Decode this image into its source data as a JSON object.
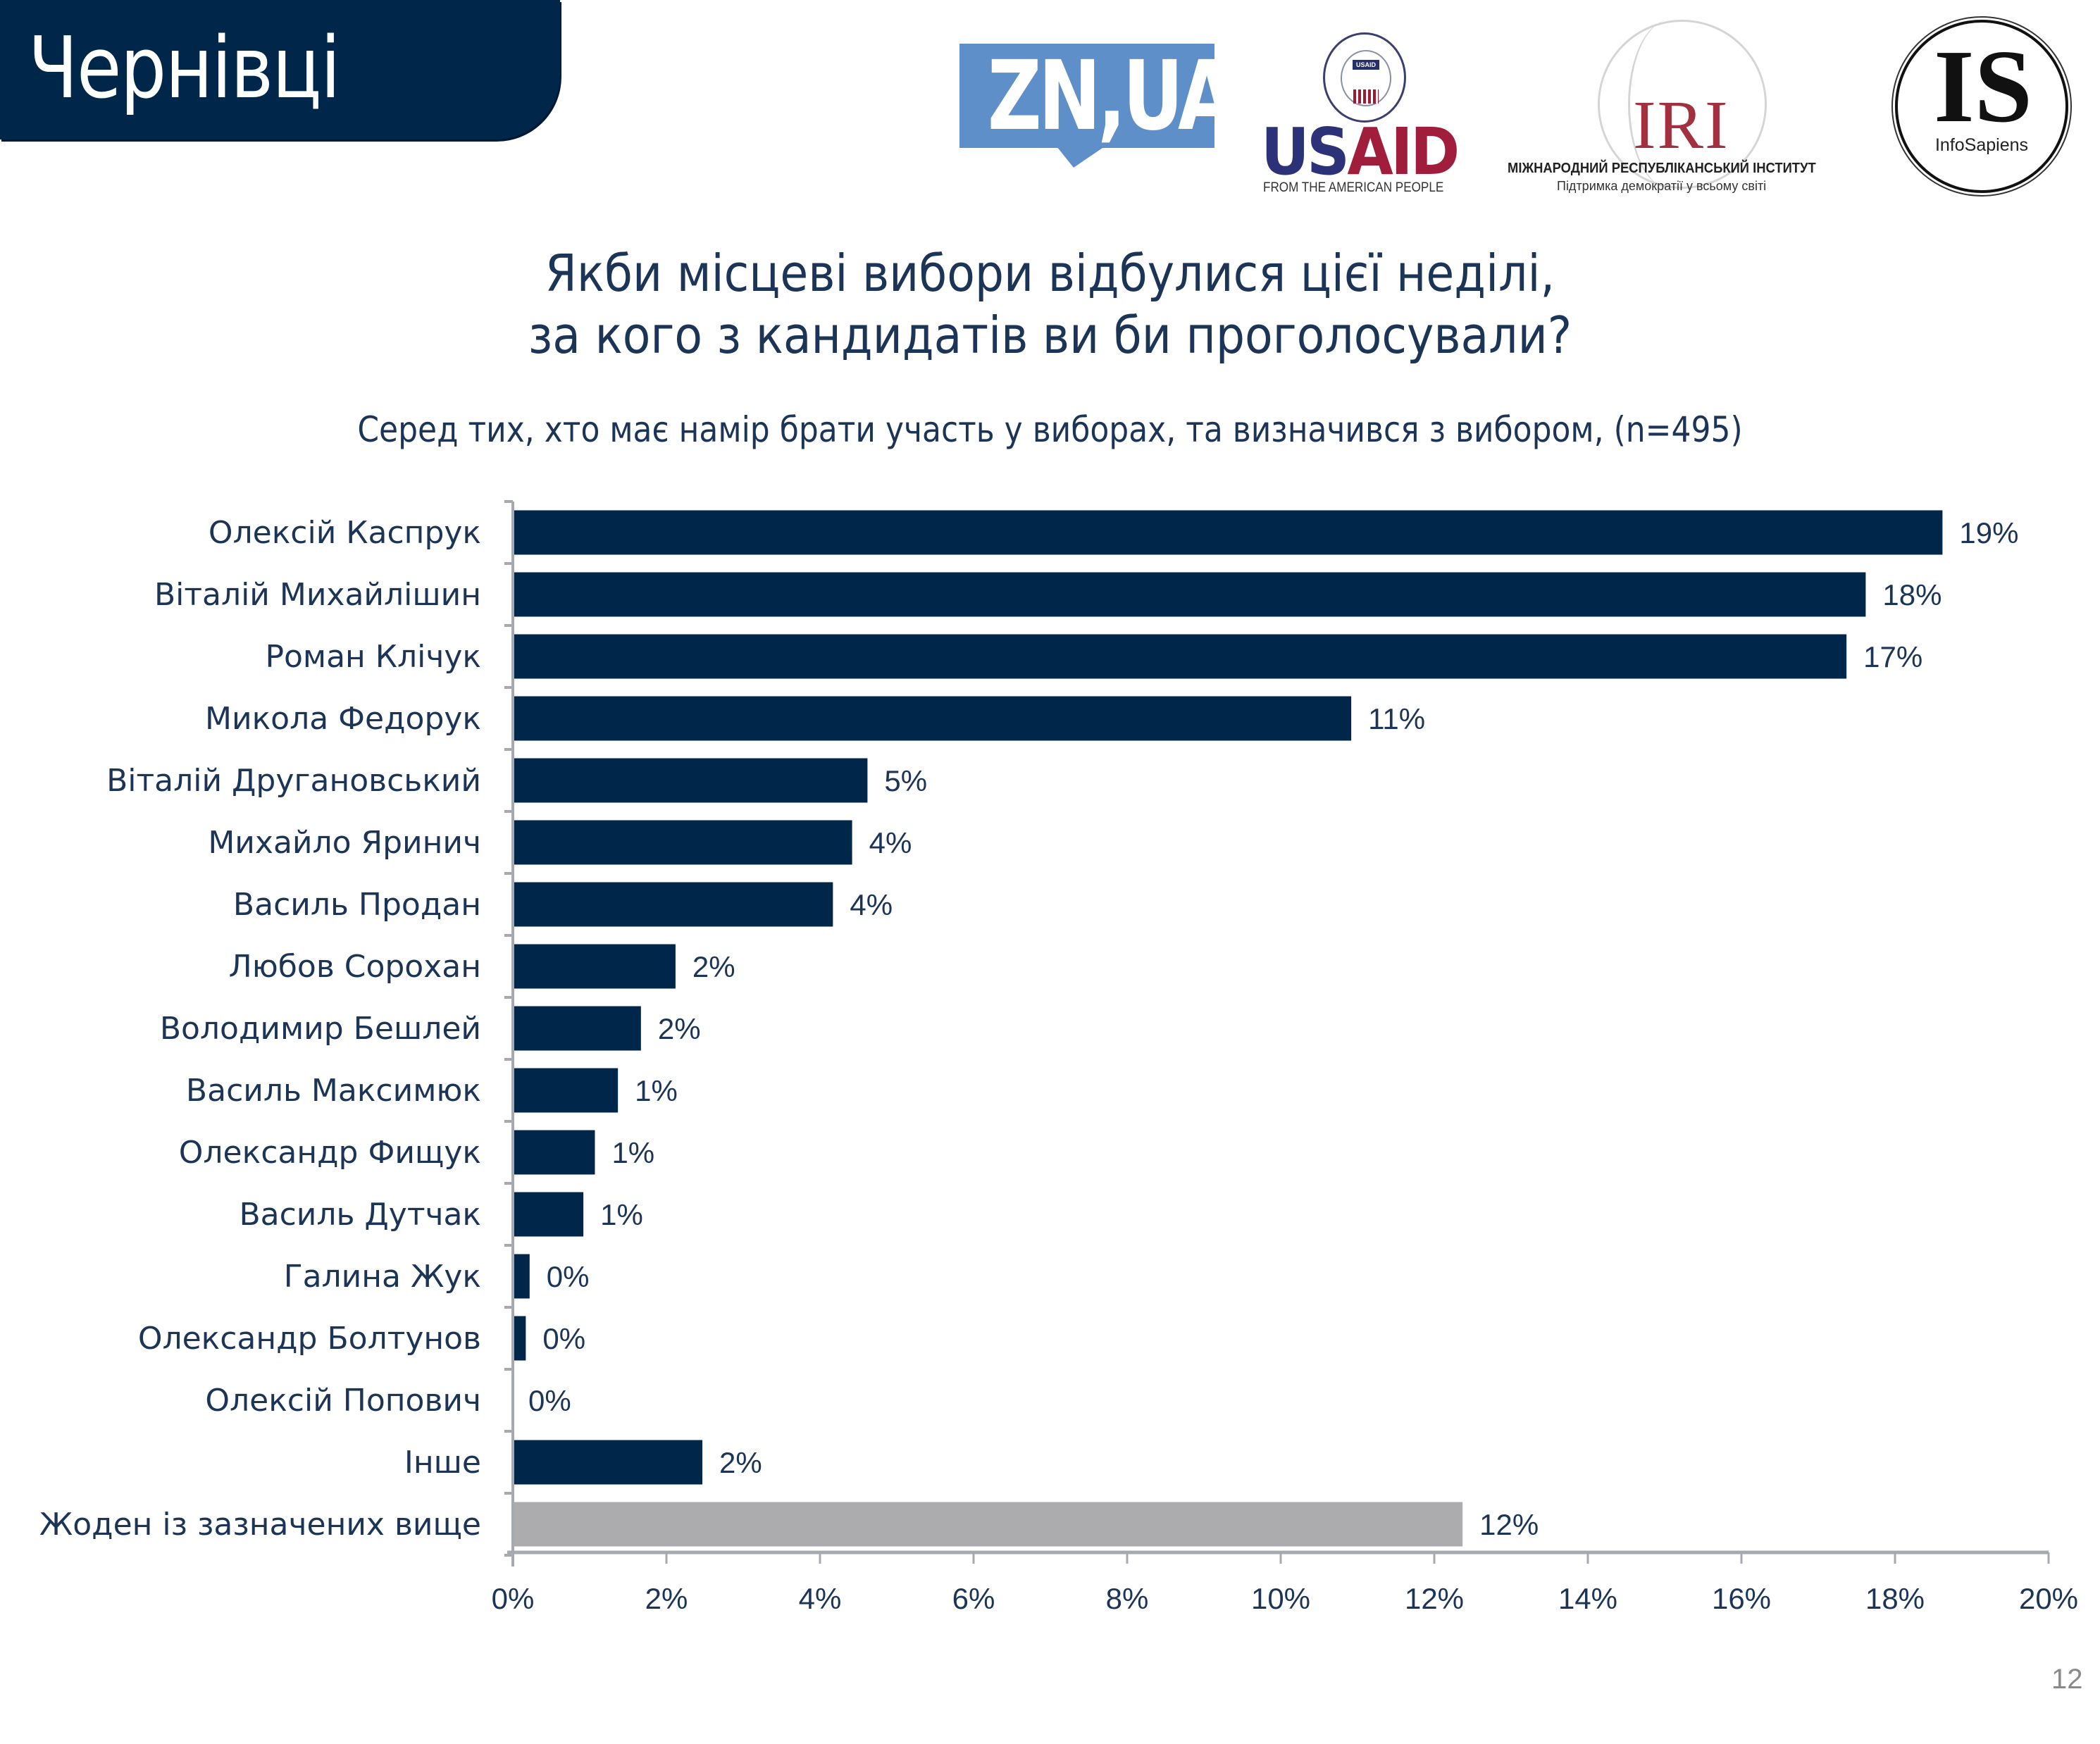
{
  "header": {
    "city": "Чернівці"
  },
  "logos": {
    "zn": {
      "text": "ZN,UA",
      "color": "#5f8fc8"
    },
    "usaid": {
      "word_us": "US",
      "word_aid": "AID",
      "badge": "USAID",
      "tagline": "FROM THE AMERICAN PEOPLE"
    },
    "iri": {
      "word": "IRI",
      "line1": "МІЖНАРОДНИЙ РЕСПУБЛІКАНСЬКИЙ ІНСТИТУТ",
      "line2": "Підтримка демократії у всьому світі"
    },
    "infosapiens": {
      "letters": "IS",
      "name": "InfoSapiens"
    }
  },
  "colors": {
    "navy": "#00264a",
    "bar": "#00264a",
    "bar_none": "#acacae",
    "axis": "#a6a9b0",
    "text": "#1c3557"
  },
  "page_number": "12",
  "chart_data": {
    "type": "bar",
    "orientation": "horizontal",
    "title": "Якби місцеві вибори відбулися цієї неділі, за кого з кандидатів ви би проголосували?",
    "title_lines": [
      "Якби місцеві вибори відбулися цієї неділі,",
      "за кого з кандидатів ви би проголосували?"
    ],
    "subtitle": "Серед тих, хто має намір брати участь у виборах, та визначився з вибором, (n=495)",
    "xlabel": "",
    "ylabel": "",
    "xlim": [
      0,
      20
    ],
    "x_ticks": [
      0,
      2,
      4,
      6,
      8,
      10,
      12,
      14,
      16,
      18,
      20
    ],
    "x_tick_labels": [
      "0%",
      "2%",
      "4%",
      "6%",
      "8%",
      "10%",
      "12%",
      "14%",
      "16%",
      "18%",
      "20%"
    ],
    "grid": false,
    "legend": "none",
    "categories": [
      "Олексій Каспрук",
      "Віталій Михайлішин",
      "Роман Клічук",
      "Микола Федорук",
      "Віталій Другановський",
      "Михайло Яринич",
      "Василь Продан",
      "Любов Сорохан",
      "Володимир Бешлей",
      "Василь Максимюк",
      "Олександр Фищук",
      "Василь Дутчак",
      "Галина Жук",
      "Олександр Болтунов",
      "Олексій Попович",
      "Інше",
      "Жоден із зазначених вище"
    ],
    "values": [
      18.6,
      17.6,
      17.35,
      10.9,
      4.6,
      4.4,
      4.15,
      2.1,
      1.65,
      1.35,
      1.05,
      0.9,
      0.2,
      0.15,
      0.0,
      2.45,
      12.35
    ],
    "data_labels": [
      "19%",
      "18%",
      "17%",
      "11%",
      "5%",
      "4%",
      "4%",
      "2%",
      "2%",
      "1%",
      "1%",
      "1%",
      "0%",
      "0%",
      "0%",
      "2%",
      "12%"
    ],
    "highlight": [
      false,
      false,
      false,
      false,
      false,
      false,
      false,
      false,
      false,
      false,
      false,
      false,
      false,
      false,
      false,
      false,
      true
    ]
  }
}
